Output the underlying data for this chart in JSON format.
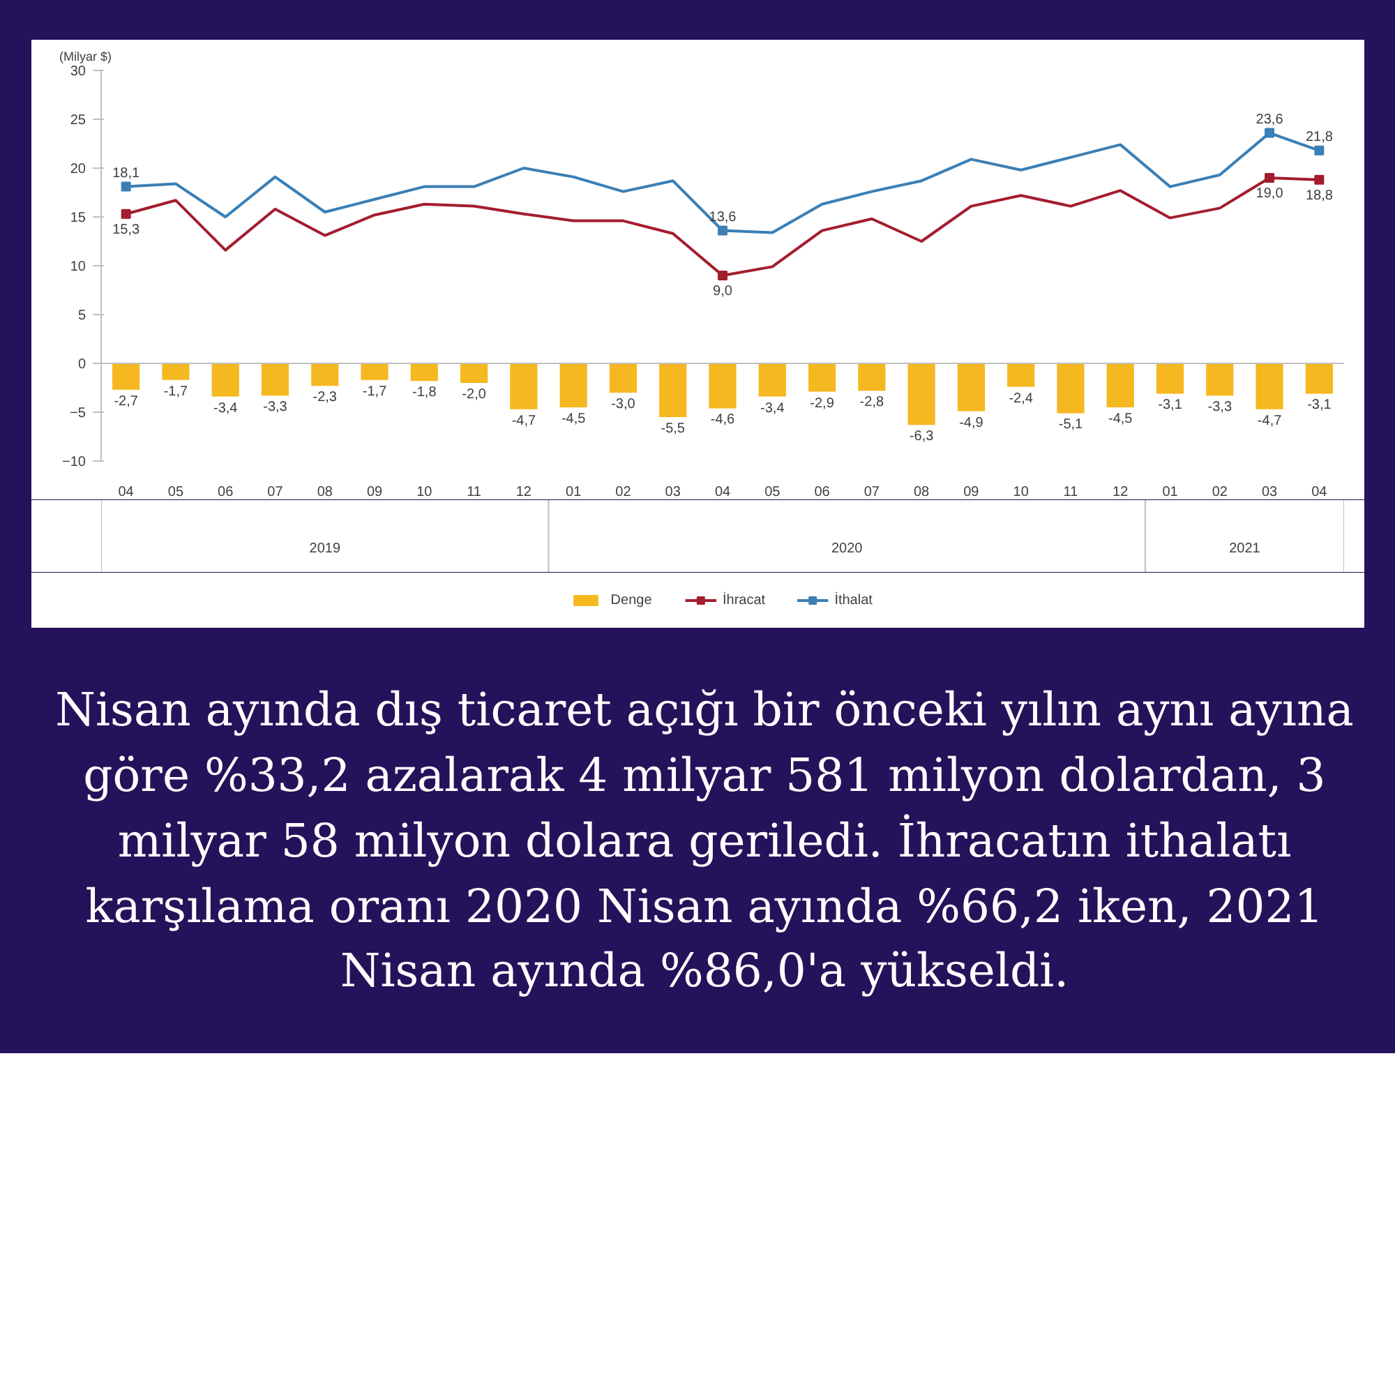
{
  "chart_data": {
    "type": "bar",
    "ylabel": "(Milyar $)",
    "categories": [
      "04",
      "05",
      "06",
      "07",
      "08",
      "09",
      "10",
      "11",
      "12",
      "01",
      "02",
      "03",
      "04",
      "05",
      "06",
      "07",
      "08",
      "09",
      "10",
      "11",
      "12",
      "01",
      "02",
      "03",
      "04"
    ],
    "series": [
      {
        "name": "Denge",
        "color": "#f5b820",
        "values": [
          -2.7,
          -1.7,
          -3.4,
          -3.3,
          -2.3,
          -1.7,
          -1.8,
          -2.0,
          -4.7,
          -4.5,
          -3.0,
          -5.5,
          -4.6,
          -3.4,
          -2.9,
          -2.8,
          -6.3,
          -4.9,
          -2.4,
          -5.1,
          -4.5,
          -3.1,
          -3.3,
          -4.7,
          -3.1
        ],
        "value_labels": [
          "-2,7",
          "-1,7",
          "-3,4",
          "-3,3",
          "-2,3",
          "-1,7",
          "-1,8",
          "-2,0",
          "-4,7",
          "-4,5",
          "-3,0",
          "-5,5",
          "-4,6",
          "-3,4",
          "-2,9",
          "-2,8",
          "-6,3",
          "-4,9",
          "-2,4",
          "-5,1",
          "-4,5",
          "-3,1",
          "-3,3",
          "-4,7",
          "-3,1"
        ]
      },
      {
        "name": "İhracat",
        "type": "line",
        "color": "#a31d2f",
        "values": [
          15.3,
          16.7,
          11.6,
          15.8,
          13.1,
          15.2,
          16.3,
          16.1,
          15.3,
          14.6,
          14.6,
          13.3,
          9.0,
          9.9,
          13.6,
          14.8,
          12.5,
          16.1,
          17.2,
          16.1,
          17.7,
          14.9,
          15.9,
          19.0,
          18.8
        ],
        "value_labels": [
          "15,3",
          null,
          null,
          null,
          null,
          null,
          null,
          null,
          null,
          null,
          null,
          null,
          "9,0",
          null,
          null,
          null,
          null,
          null,
          null,
          null,
          null,
          null,
          null,
          "19,0",
          "18,8"
        ]
      },
      {
        "name": "İthalat",
        "type": "line",
        "color": "#3a7fb5",
        "values": [
          18.1,
          18.4,
          15.0,
          19.1,
          15.5,
          16.8,
          18.1,
          18.1,
          20.0,
          19.1,
          17.6,
          18.7,
          13.6,
          13.4,
          16.3,
          17.6,
          18.7,
          20.9,
          19.8,
          21.1,
          22.4,
          18.1,
          19.3,
          23.6,
          21.8
        ],
        "value_labels": [
          "18,1",
          null,
          null,
          null,
          null,
          null,
          null,
          null,
          null,
          null,
          null,
          null,
          "13,6",
          null,
          null,
          null,
          null,
          null,
          null,
          null,
          null,
          null,
          null,
          "23,6",
          "21,8"
        ]
      }
    ],
    "ylim": [
      -10,
      30
    ],
    "yticks": [
      -10,
      -5,
      0,
      5,
      10,
      15,
      20,
      25,
      30
    ],
    "ref_lines": [
      {
        "axis": "y",
        "value": 0,
        "color": "#bfbfbf"
      }
    ],
    "grid": false,
    "legend": "bottom",
    "line_style": "solid",
    "annotations": [
      "2019",
      "2020",
      "2021",
      "Nisan ayında dış ticaret açığı bir önceki yılın aynı ayına göre %33,2 azalarak 4 milyar 581 milyon dolardan, 3 milyar 58 milyon dolara geriledi. İhracatın ithalatı karşılama oranı 2020 Nisan ayında %66,2 iken, 2021 Nisan ayında %86,0'a yükseldi."
    ]
  }
}
